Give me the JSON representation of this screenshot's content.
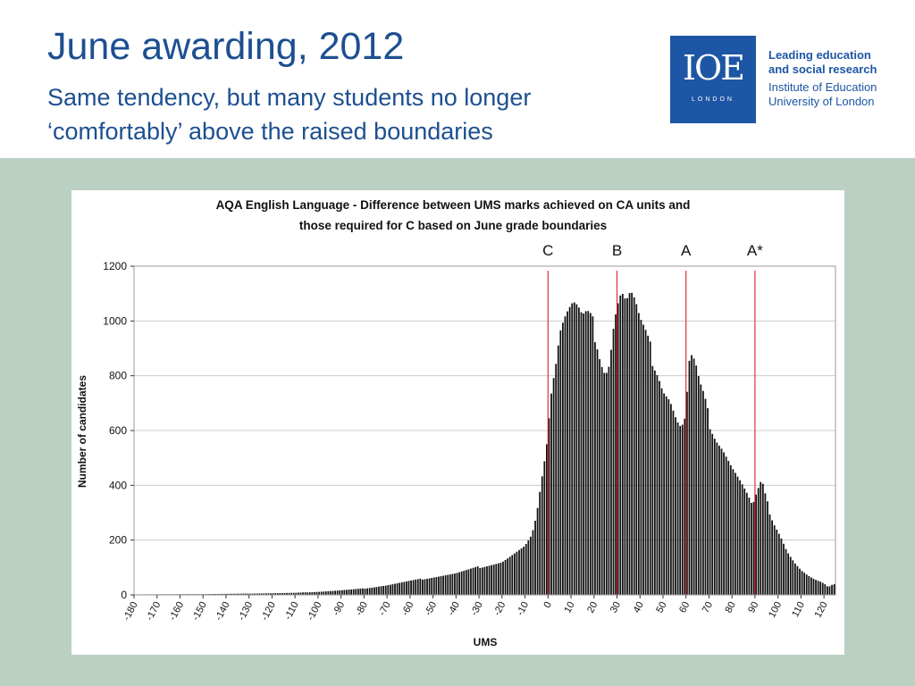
{
  "slide": {
    "title": "June awarding, 2012",
    "subtitle_line1": "Same tendency, but many students no longer",
    "subtitle_line2": "‘comfortably’ above the raised boundaries"
  },
  "logo": {
    "mark": "IOE",
    "city": "LONDON",
    "tagline_line1": "Leading education",
    "tagline_line2": "and social research",
    "org_line1": "Institute of Education",
    "org_line2": "University of London"
  },
  "colors": {
    "title": "#1d4f91",
    "band": "#b9d0c3",
    "bars": "#111111",
    "boundary": "#e03030"
  },
  "chart_data": {
    "type": "bar",
    "title_line1": "AQA English Language - Difference between UMS marks achieved on CA units and",
    "title_line2": "those required for C based on June grade boundaries",
    "xlabel": "UMS",
    "ylabel": "Number of candidates",
    "xlim": [
      -180,
      125
    ],
    "ylim": [
      0,
      1200
    ],
    "yticks": [
      0,
      200,
      400,
      600,
      800,
      1000,
      1200
    ],
    "xticks": [
      -180,
      -170,
      -160,
      -150,
      -140,
      -130,
      -120,
      -110,
      -100,
      -90,
      -80,
      -70,
      -60,
      -50,
      -40,
      -30,
      -20,
      -10,
      0,
      10,
      20,
      30,
      40,
      50,
      60,
      70,
      80,
      90,
      100,
      110,
      120
    ],
    "grid": true,
    "boundaries": [
      {
        "label": "C",
        "x": 0
      },
      {
        "label": "B",
        "x": 30
      },
      {
        "label": "A",
        "x": 60
      },
      {
        "label": "A*",
        "x": 90
      }
    ],
    "histogram_keypoints": [
      [
        -180,
        2
      ],
      [
        -150,
        3
      ],
      [
        -130,
        5
      ],
      [
        -110,
        8
      ],
      [
        -100,
        12
      ],
      [
        -90,
        18
      ],
      [
        -80,
        25
      ],
      [
        -70,
        38
      ],
      [
        -60,
        55
      ],
      [
        -50,
        70
      ],
      [
        -40,
        85
      ],
      [
        -30,
        110
      ],
      [
        -20,
        130
      ],
      [
        -15,
        160
      ],
      [
        -10,
        190
      ],
      [
        -7,
        230
      ],
      [
        -5,
        300
      ],
      [
        -3,
        420
      ],
      [
        -1,
        530
      ],
      [
        0,
        600
      ],
      [
        1,
        720
      ],
      [
        2,
        780
      ],
      [
        3,
        830
      ],
      [
        4,
        880
      ],
      [
        5,
        960
      ],
      [
        7,
        1010
      ],
      [
        9,
        1040
      ],
      [
        11,
        1060
      ],
      [
        13,
        1040
      ],
      [
        15,
        1000
      ],
      [
        17,
        1010
      ],
      [
        19,
        990
      ],
      [
        21,
        950
      ],
      [
        23,
        870
      ],
      [
        25,
        820
      ],
      [
        27,
        860
      ],
      [
        28,
        960
      ],
      [
        30,
        1060
      ],
      [
        32,
        1110
      ],
      [
        34,
        1070
      ],
      [
        36,
        1100
      ],
      [
        38,
        1060
      ],
      [
        40,
        990
      ],
      [
        42,
        950
      ],
      [
        45,
        880
      ],
      [
        48,
        820
      ],
      [
        50,
        760
      ],
      [
        53,
        720
      ],
      [
        56,
        640
      ],
      [
        58,
        610
      ],
      [
        60,
        650
      ],
      [
        61,
        820
      ],
      [
        62,
        870
      ],
      [
        64,
        840
      ],
      [
        66,
        760
      ],
      [
        68,
        710
      ],
      [
        70,
        640
      ],
      [
        73,
        580
      ],
      [
        76,
        540
      ],
      [
        80,
        470
      ],
      [
        84,
        410
      ],
      [
        87,
        360
      ],
      [
        89,
        320
      ],
      [
        91,
        370
      ],
      [
        93,
        410
      ],
      [
        95,
        340
      ],
      [
        98,
        270
      ],
      [
        101,
        220
      ],
      [
        104,
        160
      ],
      [
        107,
        120
      ],
      [
        110,
        90
      ],
      [
        113,
        70
      ],
      [
        116,
        55
      ],
      [
        119,
        45
      ],
      [
        122,
        30
      ],
      [
        124,
        40
      ]
    ]
  }
}
